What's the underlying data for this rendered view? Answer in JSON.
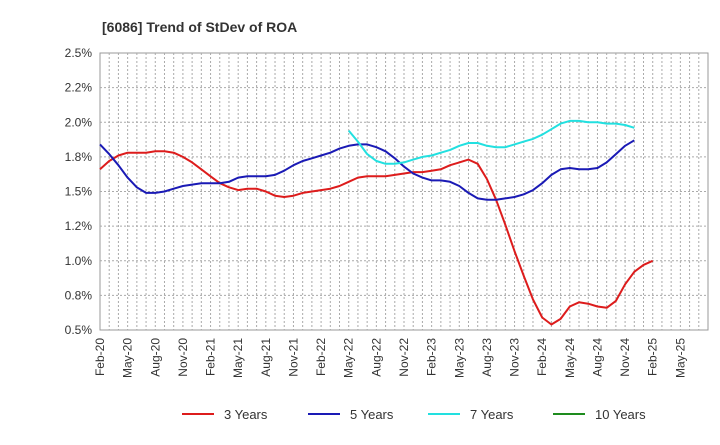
{
  "chart_data": {
    "type": "line",
    "title": "[6086]  Trend of StDev of ROA",
    "xlabel": "",
    "ylabel": "",
    "x_ticks": [
      "Feb-20",
      "May-20",
      "Aug-20",
      "Nov-20",
      "Feb-21",
      "May-21",
      "Aug-21",
      "Nov-21",
      "Feb-22",
      "May-22",
      "Aug-22",
      "Nov-22",
      "Feb-23",
      "May-23",
      "Aug-23",
      "Nov-23",
      "Feb-24",
      "May-24",
      "Aug-24",
      "Nov-24",
      "Feb-25",
      "May-25"
    ],
    "y_ticks": [
      "0.5%",
      "0.8%",
      "1.0%",
      "1.2%",
      "1.5%",
      "1.8%",
      "2.0%",
      "2.2%",
      "2.5%"
    ],
    "ylim": [
      0.5,
      2.5
    ],
    "grid": true,
    "legend_position": "bottom",
    "series": [
      {
        "name": "3 Years",
        "color": "#dd1c1c",
        "values": [
          1.66,
          1.72,
          1.76,
          1.78,
          1.78,
          1.78,
          1.79,
          1.79,
          1.78,
          1.75,
          1.71,
          1.66,
          1.61,
          1.56,
          1.53,
          1.51,
          1.52,
          1.52,
          1.5,
          1.47,
          1.46,
          1.47,
          1.49,
          1.5,
          1.51,
          1.52,
          1.54,
          1.57,
          1.6,
          1.61,
          1.61,
          1.61,
          1.62,
          1.63,
          1.64,
          1.64,
          1.65,
          1.66,
          1.69,
          1.71,
          1.73,
          1.7,
          1.59,
          1.44,
          1.26,
          1.07,
          0.89,
          0.72,
          0.59,
          0.54,
          0.58,
          0.67,
          0.7,
          0.69,
          0.67,
          0.66,
          0.71,
          0.83,
          0.92,
          0.97,
          1.0
        ]
      },
      {
        "name": "5 Years",
        "color": "#1a1ab5",
        "values": [
          1.84,
          1.77,
          1.69,
          1.6,
          1.53,
          1.49,
          1.49,
          1.5,
          1.52,
          1.54,
          1.55,
          1.56,
          1.56,
          1.56,
          1.57,
          1.6,
          1.61,
          1.61,
          1.61,
          1.62,
          1.65,
          1.69,
          1.72,
          1.74,
          1.76,
          1.78,
          1.81,
          1.83,
          1.84,
          1.84,
          1.82,
          1.79,
          1.74,
          1.68,
          1.63,
          1.6,
          1.58,
          1.58,
          1.57,
          1.54,
          1.49,
          1.45,
          1.44,
          1.44,
          1.45,
          1.46,
          1.48,
          1.51,
          1.56,
          1.62,
          1.66,
          1.67,
          1.66,
          1.66,
          1.67,
          1.71,
          1.77,
          1.83,
          1.87
        ]
      },
      {
        "name": "7 Years",
        "color": "#22e0e0",
        "values": [
          1.94,
          1.86,
          1.77,
          1.72,
          1.7,
          1.7,
          1.71,
          1.73,
          1.75,
          1.76,
          1.78,
          1.8,
          1.83,
          1.85,
          1.85,
          1.83,
          1.82,
          1.82,
          1.84,
          1.86,
          1.88,
          1.91,
          1.95,
          1.99,
          2.01,
          2.01,
          2.0,
          2.0,
          1.99,
          1.99,
          1.98,
          1.96
        ]
      },
      {
        "name": "10 Years",
        "color": "#1e8c1e",
        "values": []
      }
    ]
  }
}
